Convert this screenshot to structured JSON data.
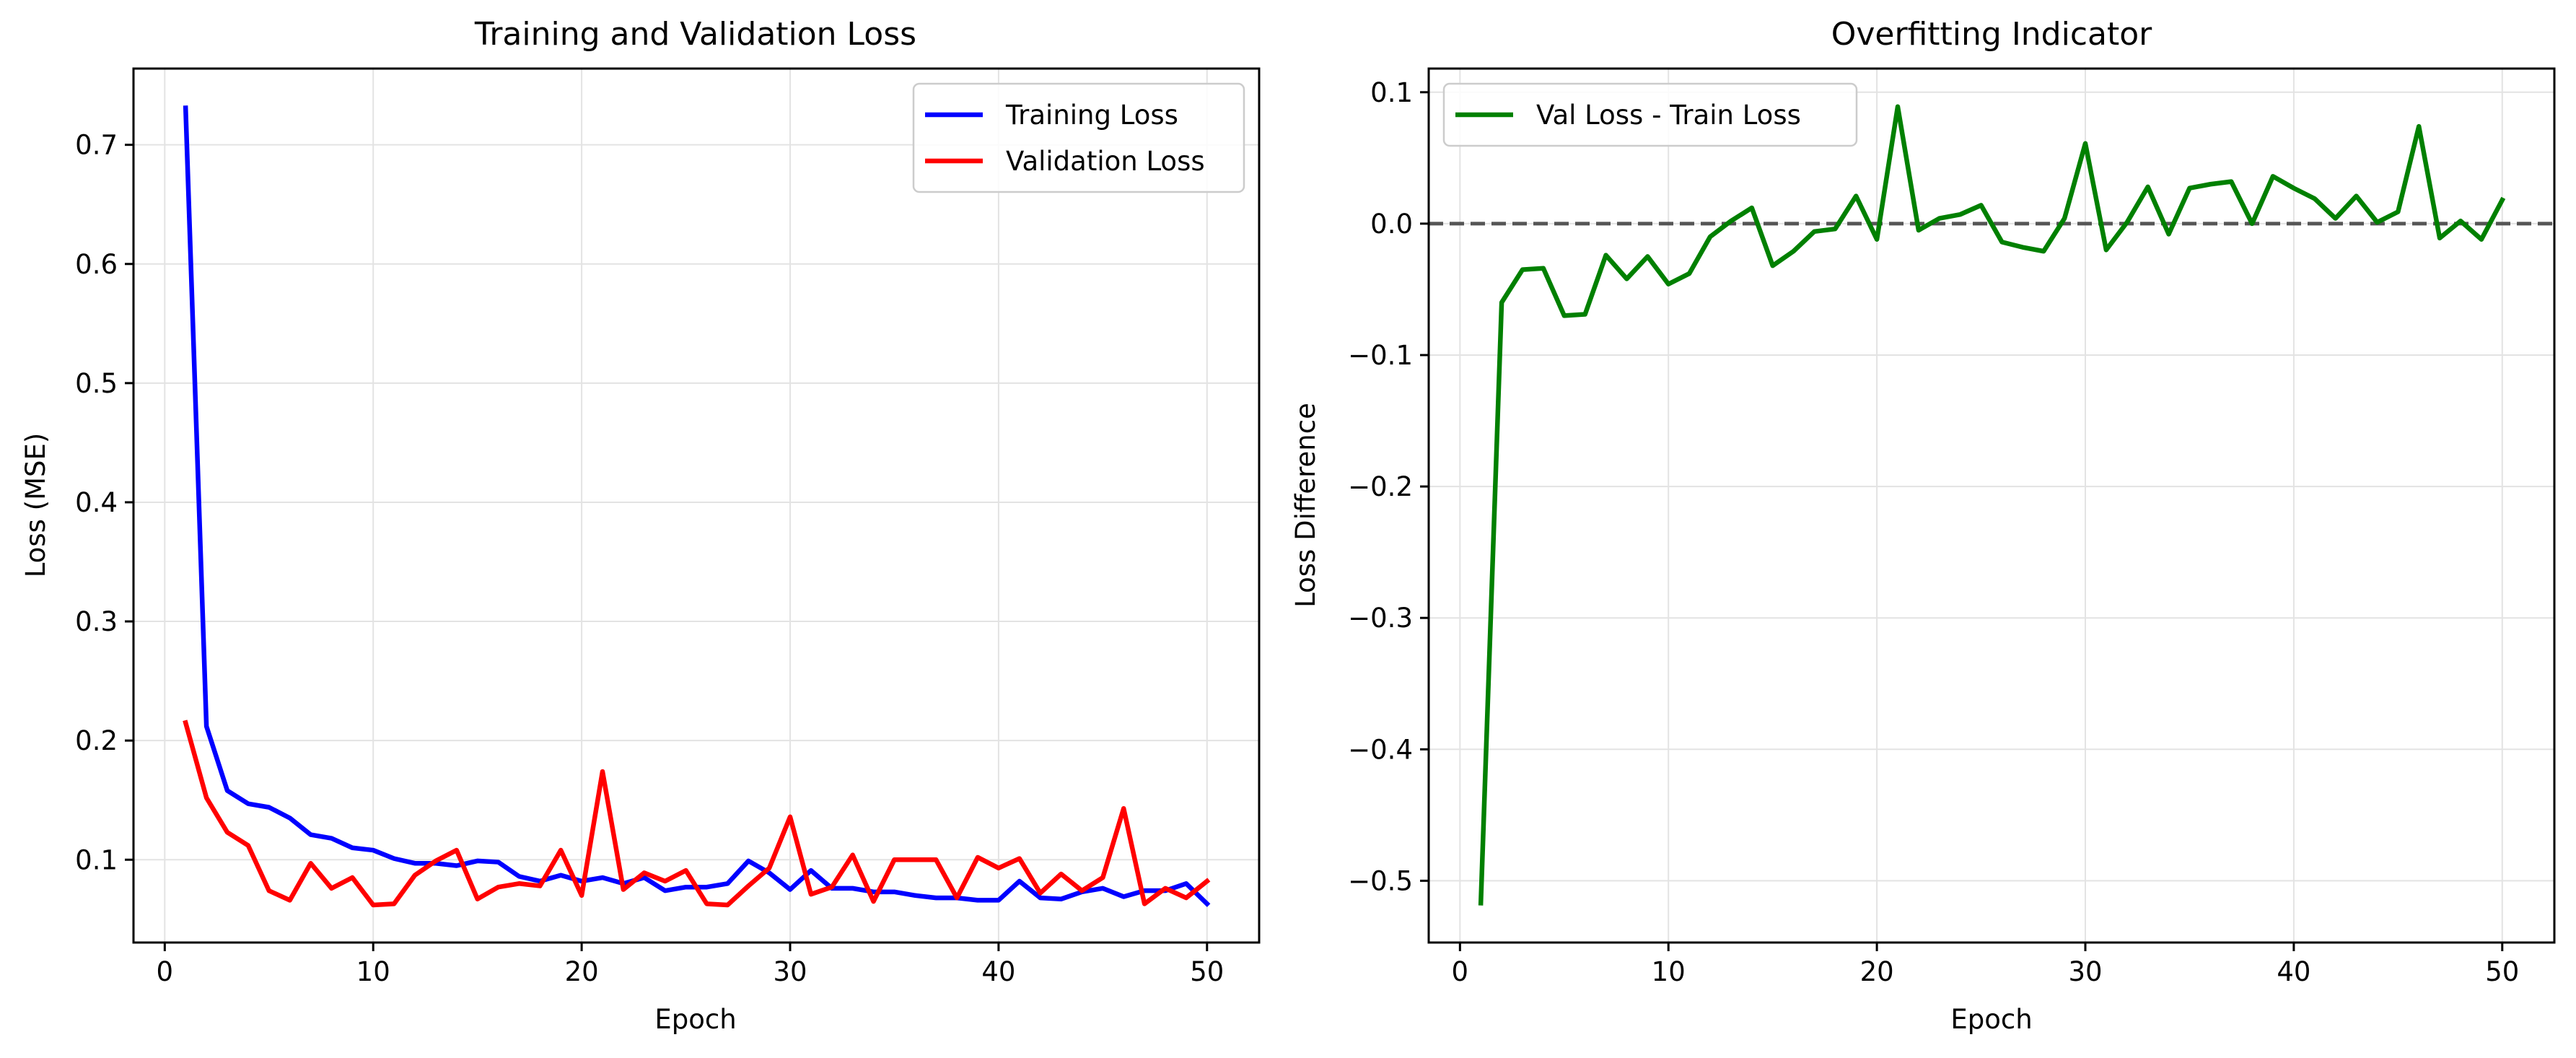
{
  "figure": {
    "background": "#ffffff"
  },
  "chart_data": [
    {
      "type": "line",
      "title": "Training and Validation Loss",
      "xlabel": "Epoch",
      "ylabel": "Loss (MSE)",
      "xlim": [
        -1.5,
        52.5
      ],
      "ylim": [
        0.0305,
        0.764
      ],
      "xticks": [
        0,
        10,
        20,
        30,
        40,
        50
      ],
      "yticks": [
        0.1,
        0.2,
        0.3,
        0.4,
        0.5,
        0.6,
        0.7
      ],
      "xtick_labels": [
        "0",
        "10",
        "20",
        "30",
        "40",
        "50"
      ],
      "ytick_labels": [
        "0.1",
        "0.2",
        "0.3",
        "0.4",
        "0.5",
        "0.6",
        "0.7"
      ],
      "grid": true,
      "legend_position": "upper right",
      "x": [
        1,
        2,
        3,
        4,
        5,
        6,
        7,
        8,
        9,
        10,
        11,
        12,
        13,
        14,
        15,
        16,
        17,
        18,
        19,
        20,
        21,
        22,
        23,
        24,
        25,
        26,
        27,
        28,
        29,
        30,
        31,
        32,
        33,
        34,
        35,
        36,
        37,
        38,
        39,
        40,
        41,
        42,
        43,
        44,
        45,
        46,
        47,
        48,
        49,
        50
      ],
      "series": [
        {
          "name": "Training Loss",
          "color": "#0000ff",
          "values": [
            0.731,
            0.212,
            0.158,
            0.147,
            0.144,
            0.135,
            0.121,
            0.118,
            0.11,
            0.108,
            0.101,
            0.097,
            0.097,
            0.095,
            0.099,
            0.098,
            0.086,
            0.082,
            0.087,
            0.082,
            0.085,
            0.08,
            0.085,
            0.074,
            0.077,
            0.077,
            0.08,
            0.099,
            0.089,
            0.075,
            0.091,
            0.076,
            0.076,
            0.073,
            0.073,
            0.07,
            0.068,
            0.068,
            0.066,
            0.066,
            0.082,
            0.068,
            0.067,
            0.073,
            0.076,
            0.069,
            0.074,
            0.074,
            0.08,
            0.063
          ]
        },
        {
          "name": "Validation Loss",
          "color": "#ff0000",
          "values": [
            0.215,
            0.152,
            0.123,
            0.112,
            0.074,
            0.066,
            0.097,
            0.076,
            0.085,
            0.062,
            0.063,
            0.087,
            0.099,
            0.108,
            0.067,
            0.077,
            0.08,
            0.078,
            0.108,
            0.07,
            0.174,
            0.075,
            0.089,
            0.082,
            0.091,
            0.063,
            0.062,
            0.078,
            0.093,
            0.136,
            0.071,
            0.077,
            0.104,
            0.065,
            0.1,
            0.1,
            0.1,
            0.068,
            0.102,
            0.093,
            0.101,
            0.072,
            0.088,
            0.074,
            0.085,
            0.143,
            0.063,
            0.076,
            0.068,
            0.082
          ]
        }
      ]
    },
    {
      "type": "line",
      "title": "Overfitting Indicator",
      "xlabel": "Epoch",
      "ylabel": "Loss Difference",
      "xlim": [
        -1.5,
        52.5
      ],
      "ylim": [
        -0.547,
        0.118
      ],
      "xticks": [
        0,
        10,
        20,
        30,
        40,
        50
      ],
      "yticks": [
        -0.5,
        -0.4,
        -0.3,
        -0.2,
        -0.1,
        0.0,
        0.1
      ],
      "xtick_labels": [
        "0",
        "10",
        "20",
        "30",
        "40",
        "50"
      ],
      "ytick_labels": [
        "−0.5",
        "−0.4",
        "−0.3",
        "−0.2",
        "−0.1",
        "0.0",
        "0.1"
      ],
      "grid": true,
      "legend_position": "upper left",
      "reference_line": {
        "y": 0.0,
        "style": "dashed",
        "color": "#555555"
      },
      "x": [
        1,
        2,
        3,
        4,
        5,
        6,
        7,
        8,
        9,
        10,
        11,
        12,
        13,
        14,
        15,
        16,
        17,
        18,
        19,
        20,
        21,
        22,
        23,
        24,
        25,
        26,
        27,
        28,
        29,
        30,
        31,
        32,
        33,
        34,
        35,
        36,
        37,
        38,
        39,
        40,
        41,
        42,
        43,
        44,
        45,
        46,
        47,
        48,
        49,
        50
      ],
      "series": [
        {
          "name": "Val Loss - Train Loss",
          "color": "#008000",
          "values": [
            -0.517,
            -0.06,
            -0.035,
            -0.034,
            -0.07,
            -0.069,
            -0.024,
            -0.042,
            -0.025,
            -0.046,
            -0.038,
            -0.01,
            0.002,
            0.012,
            -0.032,
            -0.021,
            -0.006,
            -0.004,
            0.021,
            -0.012,
            0.089,
            -0.005,
            0.004,
            0.007,
            0.014,
            -0.014,
            -0.018,
            -0.021,
            0.004,
            0.061,
            -0.02,
            0.001,
            0.028,
            -0.008,
            0.027,
            0.03,
            0.032,
            0.0,
            0.036,
            0.027,
            0.019,
            0.004,
            0.021,
            0.001,
            0.009,
            0.074,
            -0.011,
            0.002,
            -0.012,
            0.018
          ]
        }
      ]
    }
  ]
}
